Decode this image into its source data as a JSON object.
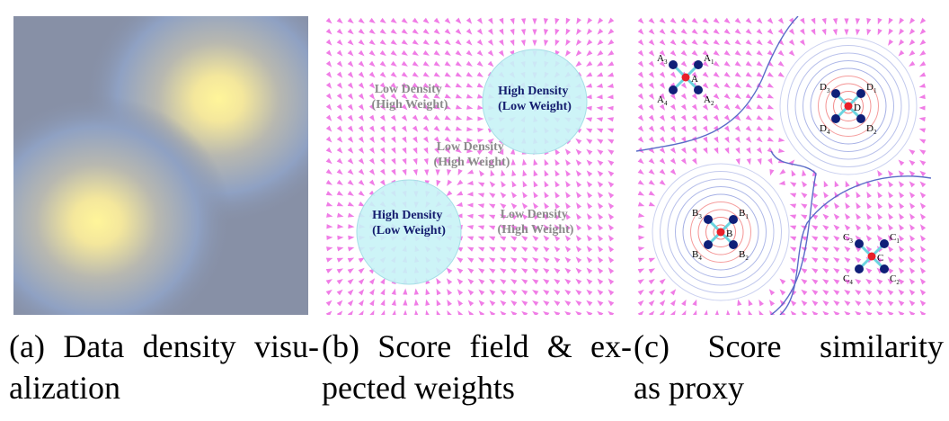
{
  "panels": {
    "a": {
      "caption_line1_words": [
        "(a)",
        "Data",
        "density",
        "visu-"
      ],
      "caption_line2": "alization"
    },
    "b": {
      "caption_line1_words": [
        "(b)",
        "Score",
        "field",
        "&",
        "ex-"
      ],
      "caption_line2": "pected weights",
      "labels": [
        {
          "line1": "High Density",
          "line2": "(Low Weight)",
          "kind": "high"
        },
        {
          "line1": "High Density",
          "line2": "(Low Weight)",
          "kind": "high"
        },
        {
          "line1": "Low Density",
          "line2": "(High Weight)",
          "kind": "low"
        },
        {
          "line1": "Low Density",
          "line2": "(High Weight)",
          "kind": "low"
        },
        {
          "line1": "Low Density",
          "line2": "(High Weight)",
          "kind": "low"
        }
      ]
    },
    "c": {
      "caption_line1_words": [
        "(c)",
        "Score",
        "similarity"
      ],
      "caption_line2": "as proxy",
      "anchors": [
        {
          "name": "A",
          "subs": [
            "1",
            "2",
            "3",
            "4"
          ]
        },
        {
          "name": "B",
          "subs": [
            "1",
            "2",
            "3",
            "4"
          ]
        },
        {
          "name": "C",
          "subs": [
            "1",
            "2",
            "3",
            "4"
          ]
        },
        {
          "name": "D",
          "subs": [
            "1",
            "2",
            "3",
            "4"
          ]
        }
      ]
    }
  },
  "colors": {
    "density_low": "#8790a6",
    "density_high": "#fff29a",
    "arrow": "#f07de6",
    "circle_fill": "#c8f3f6",
    "high_label": "#141c6e",
    "low_label": "#8c8c8c",
    "point": "#0f1f78",
    "center": "#e8202a",
    "spoke": "#6ad4df",
    "contour_outer": "#6a7bd4",
    "contour_inner": "#f06a6a"
  }
}
